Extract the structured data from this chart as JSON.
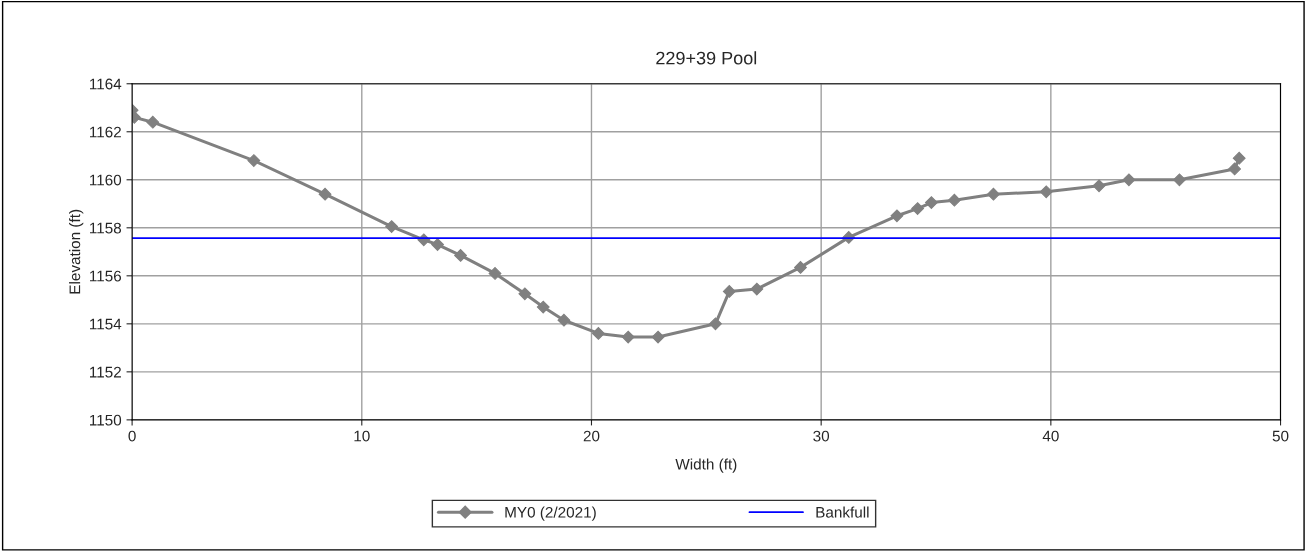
{
  "chart_data": {
    "type": "line",
    "title": "229+39 Pool",
    "xlabel": "Width (ft)",
    "ylabel": "Elevation (ft)",
    "series": [
      {
        "name": "MY0 (2/2021)",
        "color": "#808080",
        "marker": "diamond",
        "x": [
          0,
          0.1,
          0.9,
          5.3,
          8.4,
          11.3,
          12.7,
          13.3,
          14.3,
          15.8,
          17.1,
          17.9,
          18.8,
          20.3,
          21.6,
          22.9,
          25.4,
          26.0,
          27.2,
          29.1,
          31.2,
          33.3,
          34.2,
          34.8,
          35.8,
          37.5,
          39.8,
          42.1,
          43.4,
          45.6,
          48.0,
          48.2
        ],
        "values": [
          1162.9,
          1162.6,
          1162.4,
          1160.8,
          1159.4,
          1158.05,
          1157.5,
          1157.3,
          1156.85,
          1156.1,
          1155.25,
          1154.7,
          1154.15,
          1153.6,
          1153.45,
          1153.45,
          1154.0,
          1155.35,
          1155.45,
          1156.35,
          1157.6,
          1158.5,
          1158.8,
          1159.05,
          1159.15,
          1159.4,
          1159.5,
          1159.75,
          1160.0,
          1160.0,
          1160.45,
          1160.9
        ]
      }
    ],
    "ref_lines": [
      {
        "axis": "y",
        "value": 1157.57,
        "label": "Bankfull",
        "color": "#0000ff",
        "line_style": "solid"
      }
    ],
    "xlim": [
      0,
      50
    ],
    "xticks": [
      0,
      10,
      20,
      30,
      40,
      50
    ],
    "ylim": [
      1150,
      1164
    ],
    "yticks": [
      1150,
      1152,
      1154,
      1156,
      1158,
      1160,
      1162,
      1164
    ],
    "grid": true,
    "legend": "bottom"
  }
}
